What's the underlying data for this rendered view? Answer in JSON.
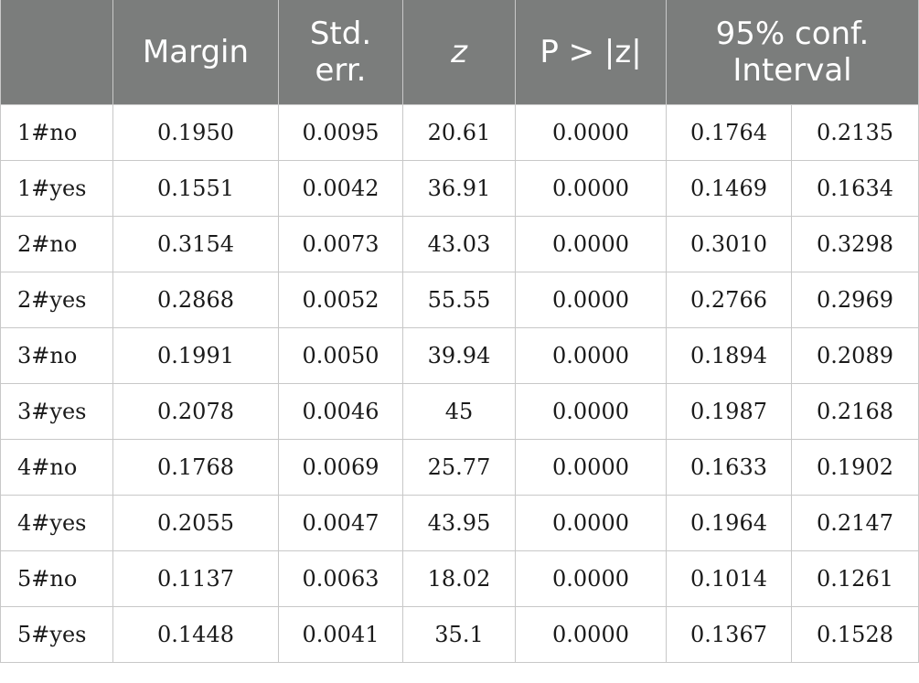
{
  "headers": {
    "empty": "",
    "margin": "Margin",
    "std_err": "Std. err.",
    "z": "z",
    "p": "P > |z|",
    "ci": "95% conf. Interval"
  },
  "rows": [
    {
      "label": "1#no",
      "margin": "0.1950",
      "se": "0.0095",
      "z": "20.61",
      "p": "0.0000",
      "lo": "0.1764",
      "hi": "0.2135"
    },
    {
      "label": "1#yes",
      "margin": "0.1551",
      "se": "0.0042",
      "z": "36.91",
      "p": "0.0000",
      "lo": "0.1469",
      "hi": "0.1634"
    },
    {
      "label": "2#no",
      "margin": "0.3154",
      "se": "0.0073",
      "z": "43.03",
      "p": "0.0000",
      "lo": "0.3010",
      "hi": "0.3298"
    },
    {
      "label": "2#yes",
      "margin": "0.2868",
      "se": "0.0052",
      "z": "55.55",
      "p": "0.0000",
      "lo": "0.2766",
      "hi": "0.2969"
    },
    {
      "label": "3#no",
      "margin": "0.1991",
      "se": "0.0050",
      "z": "39.94",
      "p": "0.0000",
      "lo": "0.1894",
      "hi": "0.2089"
    },
    {
      "label": "3#yes",
      "margin": "0.2078",
      "se": "0.0046",
      "z": "45",
      "p": "0.0000",
      "lo": "0.1987",
      "hi": "0.2168"
    },
    {
      "label": "4#no",
      "margin": "0.1768",
      "se": "0.0069",
      "z": "25.77",
      "p": "0.0000",
      "lo": "0.1633",
      "hi": "0.1902"
    },
    {
      "label": "4#yes",
      "margin": "0.2055",
      "se": "0.0047",
      "z": "43.95",
      "p": "0.0000",
      "lo": "0.1964",
      "hi": "0.2147"
    },
    {
      "label": "5#no",
      "margin": "0.1137",
      "se": "0.0063",
      "z": "18.02",
      "p": "0.0000",
      "lo": "0.1014",
      "hi": "0.1261"
    },
    {
      "label": "5#yes",
      "margin": "0.1448",
      "se": "0.0041",
      "z": "35.1",
      "p": "0.0000",
      "lo": "0.1367",
      "hi": "0.1528"
    }
  ],
  "colors": {
    "header_bg": "#7b7d7c",
    "header_text": "#ffffff",
    "border": "#c8c8c8"
  }
}
